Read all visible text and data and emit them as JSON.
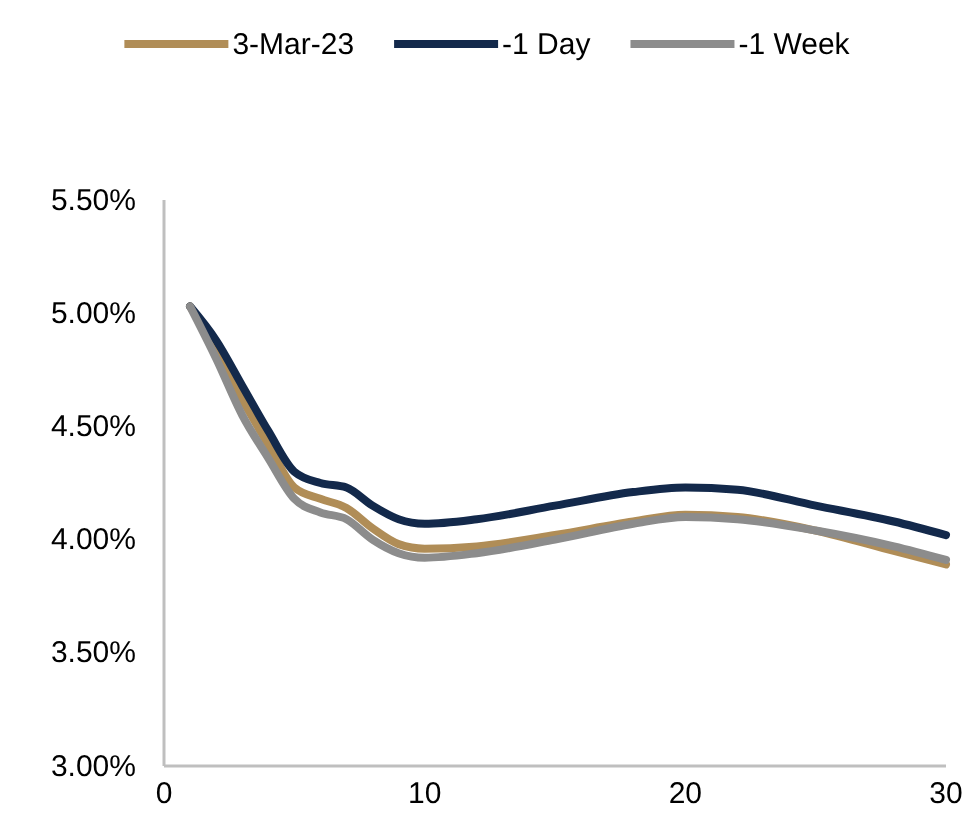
{
  "chart_data": {
    "type": "line",
    "x": [
      1,
      2,
      3,
      4,
      5,
      6,
      7,
      8,
      9,
      10,
      12,
      15,
      18,
      20,
      22,
      25,
      28,
      30
    ],
    "series": [
      {
        "name": "3-Mar-23",
        "color": "#b08d57",
        "values": [
          5.03,
          4.85,
          4.62,
          4.42,
          4.23,
          4.18,
          4.14,
          4.05,
          3.98,
          3.96,
          3.97,
          4.02,
          4.08,
          4.11,
          4.1,
          4.04,
          3.95,
          3.89
        ]
      },
      {
        "name": "-1 Day",
        "color": "#13294b",
        "values": [
          5.03,
          4.88,
          4.68,
          4.48,
          4.3,
          4.25,
          4.23,
          4.15,
          4.09,
          4.07,
          4.09,
          4.15,
          4.21,
          4.23,
          4.22,
          4.15,
          4.08,
          4.02
        ]
      },
      {
        "name": "-1 Week",
        "color": "#8c8c8c",
        "values": [
          5.03,
          4.8,
          4.55,
          4.36,
          4.18,
          4.12,
          4.09,
          4.0,
          3.94,
          3.92,
          3.94,
          4.0,
          4.07,
          4.1,
          4.09,
          4.04,
          3.97,
          3.91
        ]
      }
    ],
    "xlim": [
      0,
      30
    ],
    "xticks": [
      0,
      10,
      20,
      30
    ],
    "ylim": [
      3,
      5.5
    ],
    "yticks": [
      {
        "value": 3,
        "label": "3.00%"
      },
      {
        "value": 3.5,
        "label": "3.50%"
      },
      {
        "value": 4,
        "label": "4.00%"
      },
      {
        "value": 4.5,
        "label": "4.50%"
      },
      {
        "value": 5,
        "label": "5.00%"
      },
      {
        "value": 5.5,
        "label": "5.50%"
      }
    ],
    "grid": false,
    "legend": "top",
    "marker": "none",
    "line_style": "solid"
  }
}
